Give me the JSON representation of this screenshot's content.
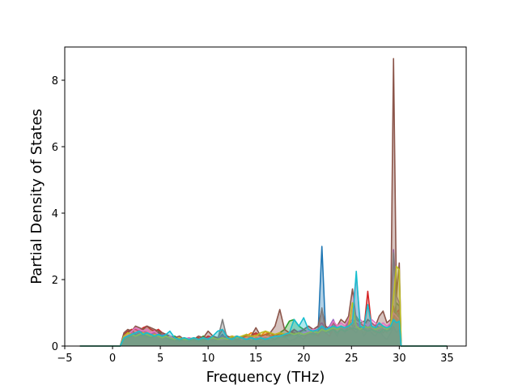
{
  "chart_data": {
    "type": "line",
    "title": "",
    "xlabel": "Frequency (THz)",
    "ylabel": "Partial Density of States",
    "xlim": [
      -5,
      37
    ],
    "ylim": [
      0,
      9
    ],
    "x_ticks": [
      -5,
      0,
      5,
      10,
      15,
      20,
      25,
      30,
      35
    ],
    "x_tick_labels": [
      "−5",
      "0",
      "5",
      "10",
      "15",
      "20",
      "25",
      "30",
      "35"
    ],
    "y_ticks": [
      0,
      2,
      4,
      6,
      8
    ],
    "y_tick_labels": [
      "0",
      "2",
      "4",
      "6",
      "8"
    ],
    "grid": false,
    "legend": "none",
    "x": [
      -3.4,
      0,
      0.8,
      1.2,
      1.6,
      2.0,
      2.4,
      2.8,
      3.2,
      3.6,
      4.0,
      4.4,
      4.8,
      5.2,
      5.6,
      6.0,
      6.5,
      7,
      7.5,
      8,
      8.5,
      9,
      9.5,
      10,
      10.5,
      11,
      11.5,
      12,
      12.5,
      13,
      13.5,
      14,
      14.5,
      15,
      15.5,
      16,
      16.5,
      17,
      17.5,
      18,
      18.5,
      19,
      19.5,
      20,
      20.5,
      21,
      21.5,
      21.9,
      22.3,
      22.7,
      23.1,
      23.5,
      23.9,
      24.3,
      24.7,
      25.1,
      25.5,
      25.9,
      26.3,
      26.7,
      27.1,
      27.5,
      27.9,
      28.3,
      28.7,
      29.1,
      29.4,
      29.7,
      30.0,
      30.2,
      30.6,
      35.0
    ],
    "series": [
      {
        "color": "#1f77b4",
        "values": [
          0,
          0,
          0,
          0.25,
          0.3,
          0.28,
          0.35,
          0.3,
          0.32,
          0.3,
          0.35,
          0.3,
          0.42,
          0.25,
          0.3,
          0.2,
          0.2,
          0.15,
          0.2,
          0.15,
          0.2,
          0.15,
          0.2,
          0.25,
          0.15,
          0.2,
          0.35,
          0.15,
          0.2,
          0.15,
          0.2,
          0.25,
          0.15,
          0.2,
          0.1,
          0.2,
          0.15,
          0.2,
          0.25,
          0.3,
          0.15,
          0.2,
          0.3,
          0.2,
          0.4,
          0.3,
          0.4,
          3.0,
          0.4,
          0.3,
          0.5,
          0.3,
          0.6,
          0.4,
          0.6,
          0.5,
          0.4,
          0.6,
          0.3,
          0.5,
          0.4,
          0.3,
          0.5,
          0.3,
          0.2,
          0.4,
          0.6,
          0.4,
          0.5,
          0,
          0,
          0
        ]
      },
      {
        "color": "#ff7f0e",
        "values": [
          0,
          0,
          0,
          0.2,
          0.25,
          0.3,
          0.3,
          0.35,
          0.3,
          0.25,
          0.3,
          0.35,
          0.3,
          0.2,
          0.25,
          0.2,
          0.15,
          0.2,
          0.15,
          0.2,
          0.15,
          0.2,
          0.15,
          0.2,
          0.3,
          0.2,
          0.25,
          0.2,
          0.3,
          0.25,
          0.2,
          0.3,
          0.4,
          0.35,
          0.3,
          0.45,
          0.3,
          0.35,
          0.4,
          0.3,
          0.35,
          0.4,
          0.3,
          0.35,
          0.4,
          0.3,
          0.35,
          0.5,
          0.4,
          0.3,
          0.5,
          0.4,
          0.6,
          0.5,
          0.7,
          1.2,
          0.6,
          0.5,
          0.4,
          0.6,
          0.5,
          0.4,
          0.7,
          0.5,
          0.4,
          0.6,
          1.2,
          0.8,
          1.0,
          0,
          0,
          0
        ]
      },
      {
        "color": "#2ca02c",
        "values": [
          0,
          0,
          0,
          0.3,
          0.4,
          0.5,
          0.35,
          0.4,
          0.45,
          0.4,
          0.35,
          0.4,
          0.5,
          0.3,
          0.35,
          0.25,
          0.3,
          0.2,
          0.25,
          0.2,
          0.25,
          0.2,
          0.3,
          0.2,
          0.25,
          0.2,
          0.3,
          0.25,
          0.2,
          0.3,
          0.25,
          0.2,
          0.3,
          0.25,
          0.2,
          0.3,
          0.25,
          0.3,
          0.4,
          0.5,
          0.75,
          0.8,
          0.6,
          0.5,
          0.4,
          0.5,
          0.4,
          0.6,
          0.5,
          0.4,
          0.7,
          0.5,
          0.6,
          0.5,
          0.8,
          0.6,
          0.9,
          0.7,
          0.75,
          0.5,
          0.6,
          0.5,
          0.6,
          0.4,
          0.55,
          0.5,
          0.8,
          1.3,
          1.2,
          0,
          0,
          0
        ]
      },
      {
        "color": "#d62728",
        "values": [
          0,
          0,
          0,
          0.35,
          0.45,
          0.5,
          0.5,
          0.45,
          0.55,
          0.6,
          0.5,
          0.45,
          0.5,
          0.4,
          0.35,
          0.3,
          0.25,
          0.2,
          0.25,
          0.2,
          0.2,
          0.25,
          0.2,
          0.3,
          0.25,
          0.2,
          0.3,
          0.25,
          0.3,
          0.25,
          0.2,
          0.35,
          0.3,
          0.4,
          0.3,
          0.35,
          0.4,
          0.3,
          0.4,
          0.35,
          0.3,
          0.5,
          0.4,
          0.3,
          0.35,
          0.4,
          0.3,
          0.5,
          0.4,
          0.3,
          0.6,
          0.4,
          0.5,
          0.45,
          0.6,
          0.5,
          0.7,
          0.6,
          0.5,
          1.65,
          0.6,
          0.5,
          0.7,
          0.6,
          0.5,
          0.55,
          0.9,
          1.0,
          1.1,
          0,
          0,
          0
        ]
      },
      {
        "color": "#9467bd",
        "values": [
          0,
          0,
          0,
          0.25,
          0.3,
          0.4,
          0.35,
          0.5,
          0.45,
          0.4,
          0.35,
          0.4,
          0.3,
          0.35,
          0.3,
          0.25,
          0.2,
          0.25,
          0.2,
          0.2,
          0.25,
          0.2,
          0.2,
          0.25,
          0.2,
          0.25,
          0.3,
          0.2,
          0.25,
          0.3,
          0.25,
          0.2,
          0.3,
          0.25,
          0.3,
          0.25,
          0.3,
          0.25,
          0.3,
          0.35,
          0.4,
          0.3,
          0.45,
          0.5,
          0.6,
          0.5,
          0.6,
          0.7,
          0.5,
          0.6,
          0.8,
          0.5,
          0.6,
          0.5,
          0.7,
          0.8,
          0.6,
          0.7,
          0.6,
          0.5,
          0.7,
          0.6,
          0.5,
          0.6,
          0.5,
          0.7,
          2.9,
          1.5,
          1.3,
          0,
          0,
          0
        ]
      },
      {
        "color": "#8c564b",
        "values": [
          0,
          0,
          0,
          0.4,
          0.5,
          0.45,
          0.6,
          0.55,
          0.5,
          0.6,
          0.55,
          0.5,
          0.45,
          0.4,
          0.35,
          0.3,
          0.25,
          0.3,
          0.2,
          0.25,
          0.2,
          0.3,
          0.25,
          0.45,
          0.3,
          0.25,
          0.5,
          0.3,
          0.25,
          0.3,
          0.25,
          0.35,
          0.3,
          0.55,
          0.3,
          0.3,
          0.4,
          0.6,
          1.1,
          0.5,
          0.4,
          0.5,
          0.4,
          0.5,
          0.6,
          0.5,
          0.6,
          1.1,
          0.6,
          0.5,
          0.7,
          0.6,
          0.8,
          0.7,
          0.9,
          1.72,
          0.8,
          0.7,
          0.6,
          0.8,
          0.7,
          0.6,
          0.9,
          1.05,
          0.7,
          0.8,
          8.65,
          1.5,
          2.5,
          0,
          0,
          0
        ]
      },
      {
        "color": "#e377c2",
        "values": [
          0,
          0,
          0,
          0.3,
          0.35,
          0.45,
          0.55,
          0.5,
          0.45,
          0.5,
          0.4,
          0.45,
          0.35,
          0.3,
          0.25,
          0.3,
          0.2,
          0.25,
          0.2,
          0.25,
          0.2,
          0.2,
          0.25,
          0.2,
          0.25,
          0.2,
          0.2,
          0.25,
          0.2,
          0.25,
          0.2,
          0.25,
          0.2,
          0.3,
          0.25,
          0.3,
          0.25,
          0.3,
          0.3,
          0.25,
          0.3,
          0.35,
          0.3,
          0.4,
          0.45,
          0.5,
          0.5,
          0.6,
          0.5,
          0.55,
          0.75,
          0.6,
          0.7,
          0.6,
          0.8,
          1.1,
          2.1,
          0.8,
          0.7,
          0.6,
          0.8,
          0.7,
          0.6,
          0.7,
          0.6,
          0.7,
          1.0,
          0.9,
          0.8,
          0,
          0,
          0
        ]
      },
      {
        "color": "#7f7f7f",
        "values": [
          0,
          0,
          0,
          0.2,
          0.25,
          0.3,
          0.35,
          0.3,
          0.35,
          0.3,
          0.25,
          0.3,
          0.35,
          0.3,
          0.25,
          0.2,
          0.2,
          0.15,
          0.2,
          0.15,
          0.2,
          0.15,
          0.2,
          0.2,
          0.25,
          0.2,
          0.8,
          0.2,
          0.25,
          0.2,
          0.25,
          0.2,
          0.25,
          0.2,
          0.25,
          0.2,
          0.25,
          0.2,
          0.3,
          0.25,
          0.3,
          0.35,
          0.3,
          0.35,
          0.4,
          0.35,
          0.4,
          1.15,
          0.4,
          0.45,
          0.5,
          0.4,
          0.5,
          0.45,
          0.5,
          0.55,
          0.5,
          0.55,
          0.5,
          0.45,
          0.5,
          0.45,
          0.4,
          0.5,
          0.45,
          0.5,
          2.8,
          1.0,
          0.9,
          0,
          0,
          0
        ]
      },
      {
        "color": "#bcbd22",
        "values": [
          0,
          0,
          0,
          0.3,
          0.4,
          0.35,
          0.3,
          0.35,
          0.4,
          0.35,
          0.3,
          0.35,
          0.3,
          0.25,
          0.3,
          0.25,
          0.2,
          0.25,
          0.2,
          0.2,
          0.25,
          0.2,
          0.25,
          0.2,
          0.25,
          0.2,
          0.25,
          0.2,
          0.3,
          0.25,
          0.3,
          0.35,
          0.3,
          0.3,
          0.4,
          0.45,
          0.4,
          0.35,
          0.4,
          0.35,
          0.4,
          0.35,
          0.4,
          0.35,
          0.4,
          0.45,
          0.4,
          0.5,
          0.45,
          0.5,
          0.55,
          0.5,
          0.6,
          0.55,
          0.6,
          1.3,
          0.6,
          0.5,
          0.6,
          0.55,
          0.6,
          0.5,
          0.55,
          0.6,
          0.5,
          0.6,
          1.5,
          2.4,
          2.3,
          0,
          0,
          0
        ]
      },
      {
        "color": "#17becf",
        "values": [
          0,
          0,
          0,
          0.25,
          0.3,
          0.35,
          0.4,
          0.45,
          0.35,
          0.4,
          0.35,
          0.3,
          0.35,
          0.3,
          0.35,
          0.45,
          0.25,
          0.2,
          0.25,
          0.2,
          0.25,
          0.2,
          0.25,
          0.2,
          0.3,
          0.45,
          0.5,
          0.25,
          0.2,
          0.3,
          0.25,
          0.2,
          0.25,
          0.2,
          0.25,
          0.2,
          0.25,
          0.3,
          0.3,
          0.35,
          0.4,
          0.8,
          0.6,
          0.85,
          0.5,
          0.45,
          0.5,
          0.6,
          0.5,
          0.55,
          0.6,
          0.55,
          0.6,
          0.55,
          0.6,
          0.7,
          2.25,
          0.6,
          0.55,
          1.25,
          0.6,
          0.55,
          0.7,
          0.6,
          0.55,
          0.6,
          0.8,
          0.7,
          0.75,
          0,
          0,
          0
        ]
      }
    ]
  }
}
